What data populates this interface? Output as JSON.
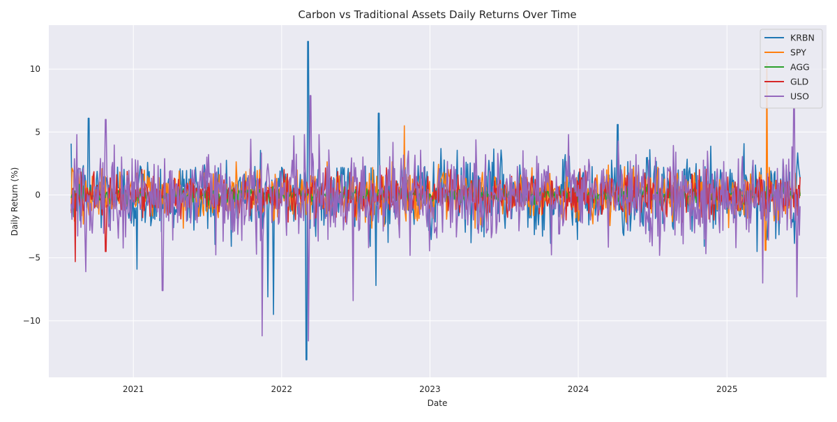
{
  "chart_data": {
    "type": "line",
    "title": "Carbon vs Traditional Assets Daily Returns Over Time",
    "xlabel": "Date",
    "ylabel": "Daily Return (%)",
    "xlim": [
      "2020-06-07",
      "2025-09-03"
    ],
    "ylim": [
      -14.5,
      13.5
    ],
    "x_start": "2020-08-01",
    "x_end": "2025-07-01",
    "x_ticks": [
      {
        "label": "2021",
        "date": "2021-01-01"
      },
      {
        "label": "2022",
        "date": "2022-01-01"
      },
      {
        "label": "2023",
        "date": "2023-01-01"
      },
      {
        "label": "2024",
        "date": "2024-01-01"
      },
      {
        "label": "2025",
        "date": "2025-01-01"
      }
    ],
    "y_ticks": [
      {
        "label": "10",
        "value": 10
      },
      {
        "label": "5",
        "value": 5
      },
      {
        "label": "0",
        "value": 0
      },
      {
        "label": "−5",
        "value": -5
      },
      {
        "label": "−10",
        "value": -10
      }
    ],
    "grid": true,
    "legend_position": "top-right",
    "series": [
      {
        "name": "KRBN",
        "color": "#1f77b4",
        "amplitude": 1.7,
        "extremes": [
          {
            "date": "2020-09-13",
            "value": 6.1
          },
          {
            "date": "2021-01-10",
            "value": -5.9
          },
          {
            "date": "2021-11-28",
            "value": -8.1
          },
          {
            "date": "2021-12-12",
            "value": -9.5
          },
          {
            "date": "2022-03-03",
            "value": -13.1
          },
          {
            "date": "2022-03-07",
            "value": 12.2
          },
          {
            "date": "2022-08-21",
            "value": -7.2
          },
          {
            "date": "2022-08-28",
            "value": 6.5
          },
          {
            "date": "2024-04-07",
            "value": 5.6
          },
          {
            "date": "2025-03-16",
            "value": -4.5
          }
        ]
      },
      {
        "name": "SPY",
        "color": "#ff7f0e",
        "amplitude": 1.1,
        "extremes": [
          {
            "date": "2022-10-30",
            "value": 5.5
          },
          {
            "date": "2025-04-06",
            "value": -4.4
          },
          {
            "date": "2025-04-09",
            "value": 10.5
          }
        ]
      },
      {
        "name": "AGG",
        "color": "#2ca02c",
        "amplitude": 0.35,
        "extremes": []
      },
      {
        "name": "GLD",
        "color": "#d62728",
        "amplitude": 0.9,
        "extremes": [
          {
            "date": "2020-08-11",
            "value": -5.3
          },
          {
            "date": "2020-10-25",
            "value": -4.5
          }
        ]
      },
      {
        "name": "USO",
        "color": "#9467bd",
        "amplitude": 2.0,
        "extremes": [
          {
            "date": "2020-09-06",
            "value": -6.1
          },
          {
            "date": "2020-10-25",
            "value": 6.0
          },
          {
            "date": "2021-03-14",
            "value": -7.6
          },
          {
            "date": "2021-11-14",
            "value": -11.2
          },
          {
            "date": "2022-03-08",
            "value": -11.6
          },
          {
            "date": "2022-03-13",
            "value": 7.9
          },
          {
            "date": "2022-06-26",
            "value": -8.4
          },
          {
            "date": "2025-03-30",
            "value": -7.0
          },
          {
            "date": "2025-06-15",
            "value": 6.9
          },
          {
            "date": "2025-06-22",
            "value": -8.1
          }
        ]
      }
    ]
  }
}
